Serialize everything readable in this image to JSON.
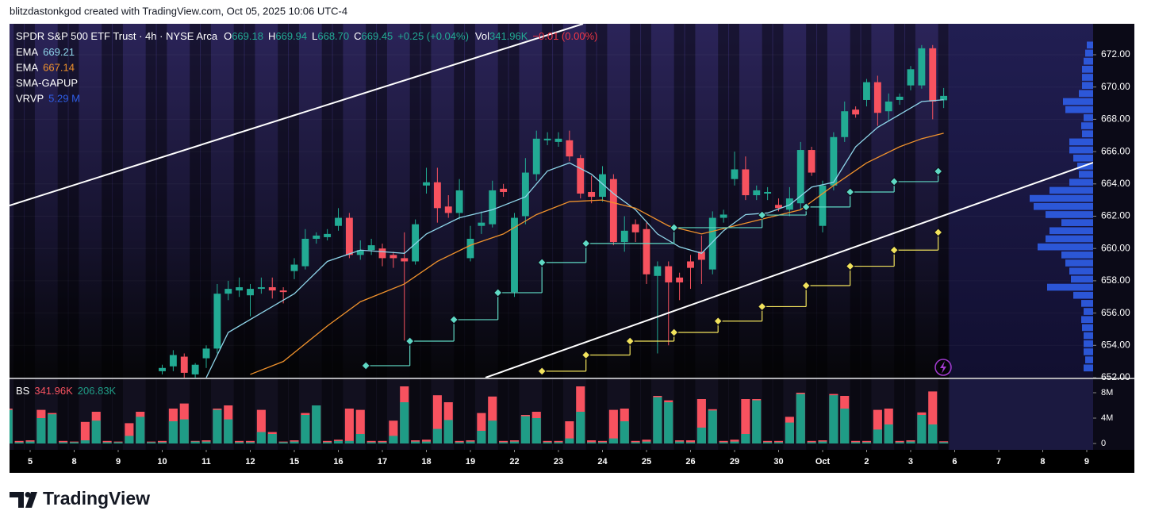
{
  "header": "blitzdastonkgod created with TradingView.com, Oct 05, 2025 10:06 UTC-4",
  "footer": "TradingView",
  "chart_data": {
    "type": "candlestick",
    "legend": {
      "symbol": "SPDR S&P 500 ETF Trust · 4h · NYSE Arca",
      "ohlc": [
        {
          "label": "O",
          "text": "669.18"
        },
        {
          "label": "H",
          "text": "669.94"
        },
        {
          "label": "L",
          "text": "668.70"
        },
        {
          "label": "C",
          "text": "669.45"
        }
      ],
      "change": "+0.25 (+0.04%)",
      "volume": {
        "label": "Vol",
        "text": "341.96K"
      },
      "volume_change": "−0.01 (0.00%)"
    },
    "up_color": "#22ab94",
    "down_color": "#f7525f",
    "xlim": [
      -1.874,
      96.577
    ],
    "xticks": [
      {
        "value": 0,
        "label": "5"
      },
      {
        "value": 4,
        "label": "8"
      },
      {
        "value": 8,
        "label": "9"
      },
      {
        "value": 12,
        "label": "10"
      },
      {
        "value": 16,
        "label": "11"
      },
      {
        "value": 20,
        "label": "12"
      },
      {
        "value": 24,
        "label": "15"
      },
      {
        "value": 28,
        "label": "16"
      },
      {
        "value": 32,
        "label": "17"
      },
      {
        "value": 36,
        "label": "18"
      },
      {
        "value": 40,
        "label": "19"
      },
      {
        "value": 44,
        "label": "22"
      },
      {
        "value": 48,
        "label": "23"
      },
      {
        "value": 52,
        "label": "24"
      },
      {
        "value": 56,
        "label": "25"
      },
      {
        "value": 60,
        "label": "26"
      },
      {
        "value": 64,
        "label": "29"
      },
      {
        "value": 68,
        "label": "30"
      },
      {
        "value": 72,
        "label": "Oct"
      },
      {
        "value": 76,
        "label": "2"
      },
      {
        "value": 80,
        "label": "3"
      },
      {
        "value": 84,
        "label": "6"
      },
      {
        "value": 88,
        "label": "7"
      },
      {
        "value": 92,
        "label": "8"
      },
      {
        "value": 96,
        "label": "9"
      }
    ],
    "ylim": [
      652,
      673.916
    ],
    "yticks": [
      {
        "value": 672,
        "label": "672.00"
      },
      {
        "value": 670,
        "label": "670.00"
      },
      {
        "value": 668,
        "label": "668.00"
      },
      {
        "value": 666,
        "label": "666.00"
      },
      {
        "value": 664,
        "label": "664.00"
      },
      {
        "value": 662,
        "label": "662.00"
      },
      {
        "value": 660,
        "label": "660.00"
      },
      {
        "value": 658,
        "label": "658.00"
      },
      {
        "value": 656,
        "label": "656.00"
      },
      {
        "value": 654,
        "label": "654.00"
      },
      {
        "value": 652,
        "label": "652.00"
      }
    ],
    "x": [
      12,
      13,
      14,
      15,
      16,
      17,
      18,
      19,
      20,
      21,
      22,
      23,
      24,
      25,
      26,
      27,
      28,
      29,
      30,
      31,
      32,
      33,
      34,
      35,
      36,
      37,
      38,
      39,
      40,
      41,
      42,
      43,
      44,
      45,
      46,
      47,
      48,
      49,
      50,
      51,
      52,
      53,
      54,
      55,
      56,
      57,
      58,
      59,
      60,
      61,
      62,
      63,
      64,
      65,
      66,
      67,
      68,
      69,
      70,
      71,
      72,
      73,
      74,
      75,
      76,
      77,
      78,
      79,
      80,
      81,
      82,
      83
    ],
    "open": [
      652.4,
      652.7,
      653.3,
      652.2,
      653.2,
      653.8,
      657.2,
      657.4,
      657.1,
      657.5,
      657.6,
      657.4,
      658.6,
      658.9,
      660.6,
      660.7,
      661.4,
      661.9,
      659.6,
      659.9,
      660.0,
      659.6,
      659.4,
      659.2,
      663.9,
      664.1,
      662.6,
      662.2,
      659.4,
      661.4,
      661.5,
      663.7,
      657.3,
      662.0,
      664.6,
      666.7,
      666.6,
      666.7,
      665.6,
      663.5,
      663.2,
      664.3,
      660.4,
      661.5,
      661.2,
      658.3,
      658.9,
      658.2,
      659.2,
      659.8,
      658.7,
      661.9,
      664.3,
      664.9,
      663.3,
      663.4,
      662.7,
      662.4,
      662.8,
      666.1,
      661.4,
      663.9,
      666.9,
      668.6,
      669.2,
      670.3,
      668.5,
      669.2,
      670.1,
      670.1,
      672.4,
      669.18
    ],
    "high": [
      652.8,
      653.7,
      653.5,
      652.9,
      654.0,
      657.8,
      658.0,
      658.2,
      657.8,
      658.2,
      658.2,
      657.6,
      659.4,
      661.2,
      661.0,
      661.2,
      662.5,
      662.2,
      660.5,
      660.6,
      660.3,
      659.8,
      661.0,
      661.8,
      665.0,
      665.0,
      663.3,
      664.3,
      661.4,
      662.3,
      664.2,
      664.0,
      662.2,
      665.6,
      667.3,
      667.2,
      667.2,
      667.3,
      665.8,
      664.5,
      665.1,
      664.6,
      662.0,
      661.8,
      661.6,
      659.2,
      659.2,
      658.5,
      659.6,
      660.8,
      662.3,
      662.4,
      666.0,
      665.7,
      663.9,
      663.8,
      663.1,
      663.8,
      666.6,
      666.3,
      664.2,
      667.2,
      669.1,
      668.8,
      670.5,
      670.7,
      669.6,
      669.6,
      671.3,
      672.6,
      672.6,
      669.94
    ],
    "low": [
      652.2,
      652.4,
      652.0,
      652.0,
      652.6,
      653.5,
      656.8,
      657.0,
      655.8,
      657.2,
      656.9,
      656.6,
      658.1,
      658.7,
      660.3,
      660.5,
      661.1,
      659.4,
      659.3,
      659.6,
      658.9,
      658.8,
      654.3,
      659.0,
      663.4,
      661.6,
      661.9,
      661.8,
      659.2,
      660.9,
      661.3,
      663.2,
      657.0,
      661.5,
      664.2,
      666.4,
      666.3,
      665.4,
      663.1,
      662.8,
      662.9,
      660.2,
      659.8,
      660.4,
      657.8,
      653.5,
      654.0,
      656.8,
      657.5,
      657.8,
      658.4,
      661.6,
      663.9,
      663.0,
      663.0,
      663.0,
      662.3,
      662.0,
      662.4,
      664.5,
      661.0,
      663.6,
      666.6,
      668.1,
      668.8,
      667.6,
      667.9,
      668.9,
      669.8,
      669.9,
      668.0,
      668.7
    ],
    "close": [
      652.6,
      653.4,
      652.3,
      652.8,
      653.8,
      657.2,
      657.5,
      657.6,
      657.5,
      657.6,
      657.4,
      657.3,
      659.0,
      660.6,
      660.8,
      660.9,
      661.9,
      659.6,
      659.9,
      660.2,
      659.4,
      659.4,
      659.2,
      661.5,
      664.1,
      662.5,
      662.2,
      663.6,
      660.6,
      661.6,
      663.6,
      663.5,
      661.9,
      664.7,
      666.8,
      666.8,
      666.8,
      665.7,
      663.4,
      663.2,
      664.6,
      660.4,
      661.1,
      661.0,
      658.4,
      658.9,
      657.9,
      657.9,
      658.8,
      659.3,
      661.9,
      662.1,
      664.9,
      663.3,
      663.6,
      663.5,
      662.5,
      663.1,
      666.1,
      664.7,
      663.9,
      666.9,
      668.5,
      668.3,
      670.3,
      668.4,
      669.1,
      669.4,
      671.1,
      672.4,
      669.1,
      669.45
    ],
    "lines": [
      {
        "name": "EMA",
        "value_label": "669.21",
        "color": "#8fd6ea",
        "x": [
          16,
          18,
          21,
          24,
          27,
          30,
          34,
          36,
          39,
          42,
          45,
          47,
          49,
          51,
          53,
          55,
          57,
          59,
          61,
          63,
          65,
          67,
          69,
          71,
          73,
          75,
          77,
          79,
          81,
          83
        ],
        "values": [
          652.0,
          654.8,
          656.0,
          657.2,
          659.2,
          659.9,
          659.7,
          660.9,
          661.9,
          662.4,
          663.2,
          664.8,
          665.3,
          664.6,
          663.4,
          662.4,
          660.9,
          660.1,
          659.7,
          661.1,
          662.1,
          662.2,
          662.7,
          663.8,
          664.1,
          666.3,
          667.5,
          668.3,
          669.1,
          669.21
        ]
      },
      {
        "name": "EMA",
        "value_label": "667.14",
        "color": "#f0922c",
        "x": [
          20,
          23,
          27,
          30,
          34,
          37,
          40,
          43,
          46,
          49,
          52,
          55,
          58,
          61,
          64,
          67,
          70,
          73,
          76,
          79,
          81,
          83
        ],
        "values": [
          652.2,
          653.0,
          655.2,
          656.7,
          657.8,
          659.2,
          660.2,
          660.9,
          662.1,
          662.9,
          663.0,
          662.5,
          661.4,
          660.9,
          661.4,
          661.9,
          662.4,
          663.9,
          665.3,
          666.3,
          666.8,
          667.14
        ]
      }
    ],
    "gapup": {
      "name": "SMA-GAPUP",
      "lines": [
        {
          "color": "#5fd9c4",
          "x": [
            30.5,
            34.5,
            38.5,
            42.5,
            46.5,
            50.5,
            58.5,
            66.5,
            70.5,
            74.5,
            78.5,
            82.5
          ],
          "values": [
            652.74,
            654.26,
            655.59,
            657.26,
            659.13,
            660.31,
            661.29,
            662.07,
            662.57,
            663.5,
            664.14,
            664.78
          ]
        },
        {
          "color": "#f2e35c",
          "x": [
            46.5,
            50.5,
            54.5,
            58.5,
            62.5,
            66.5,
            70.5,
            74.5,
            78.5,
            82.5
          ],
          "values": [
            652.4,
            653.4,
            654.26,
            654.8,
            655.5,
            656.4,
            657.7,
            658.9,
            659.9,
            661.0
          ]
        }
      ]
    },
    "vrvp": {
      "name": "VRVP",
      "value_label": "5.29 M",
      "color": "#2f5ee8",
      "levels": [
        672.6,
        672.1,
        671.6,
        671.1,
        670.6,
        670.1,
        669.6,
        669.1,
        668.6,
        668.1,
        667.6,
        667.1,
        666.6,
        666.1,
        665.6,
        665.1,
        664.6,
        664.1,
        663.6,
        663.1,
        662.6,
        662.1,
        661.6,
        661.1,
        660.6,
        660.1,
        659.6,
        659.1,
        658.6,
        658.1,
        657.6,
        657.1,
        656.6,
        656.1,
        655.6,
        655.1,
        654.6,
        654.1,
        653.6,
        653.1,
        652.6
      ],
      "values": [
        8,
        10,
        12,
        14,
        14,
        14,
        18,
        38,
        35,
        12,
        15,
        14,
        30,
        30,
        25,
        20,
        18,
        30,
        55,
        80,
        75,
        60,
        40,
        55,
        60,
        70,
        40,
        35,
        30,
        28,
        58,
        25,
        15,
        12,
        15,
        14,
        12,
        12,
        12,
        10,
        12
      ]
    },
    "volume": {
      "name": "BS",
      "ylim": [
        -1000000,
        10125000
      ],
      "yticks": [
        0,
        {
          "value": 4000000,
          "label": "4M"
        },
        {
          "value": 8000000,
          "label": "8M"
        }
      ],
      "x": [
        -2,
        -1,
        0,
        1,
        2,
        3,
        4,
        5,
        6,
        7,
        8,
        9,
        10,
        11,
        12,
        13,
        14,
        15,
        16,
        17,
        18,
        19,
        20,
        21,
        22,
        23,
        24,
        25,
        26,
        27,
        28,
        29,
        30,
        31,
        32,
        33,
        34,
        35,
        36,
        37,
        38,
        39,
        40,
        41,
        42,
        43,
        44,
        45,
        46,
        47,
        48,
        49,
        50,
        51,
        52,
        53,
        54,
        55,
        56,
        57,
        58,
        59,
        60,
        61,
        62,
        63,
        64,
        65,
        66,
        67,
        68,
        69,
        70,
        71,
        72,
        73,
        74,
        75,
        76,
        77,
        78,
        79,
        80,
        81,
        82,
        83
      ],
      "series": [
        {
          "color": "#f7525f",
          "value_label": "341.96K",
          "values": [
            5500000,
            400000,
            500000,
            5300000,
            4800000,
            400000,
            300000,
            3400000,
            5000000,
            400000,
            300000,
            3200000,
            5000000,
            300000,
            400000,
            5500000,
            6300000,
            400000,
            500000,
            5500000,
            6000000,
            400000,
            400000,
            5300000,
            1800000,
            300000,
            500000,
            4800000,
            6000000,
            400000,
            600000,
            5500000,
            5300000,
            400000,
            400000,
            3600000,
            9000000,
            500000,
            600000,
            7600000,
            6500000,
            400000,
            500000,
            4800000,
            7400000,
            400000,
            500000,
            4500000,
            5000000,
            400000,
            400000,
            3500000,
            9000000,
            500000,
            400000,
            5300000,
            5500000,
            400000,
            600000,
            7500000,
            6800000,
            500000,
            500000,
            7000000,
            5400000,
            400000,
            600000,
            7000000,
            7000000,
            400000,
            400000,
            4200000,
            8000000,
            400000,
            500000,
            7800000,
            7500000,
            400000,
            400000,
            5300000,
            5500000,
            400000,
            500000,
            4900000,
            8200000,
            341960
          ]
        },
        {
          "color": "#1f9c86",
          "value_label": "206.83K",
          "values": [
            5300000,
            200000,
            300000,
            4000000,
            4600000,
            200000,
            200000,
            500000,
            3600000,
            200000,
            200000,
            1200000,
            4200000,
            200000,
            200000,
            3500000,
            3800000,
            300000,
            300000,
            5300000,
            3800000,
            200000,
            200000,
            1800000,
            1500000,
            200000,
            300000,
            4500000,
            6000000,
            200000,
            400000,
            400000,
            1500000,
            200000,
            200000,
            1200000,
            6500000,
            300000,
            300000,
            2300000,
            3700000,
            200000,
            300000,
            2000000,
            3600000,
            200000,
            300000,
            4300000,
            4000000,
            200000,
            200000,
            800000,
            5000000,
            200000,
            200000,
            800000,
            3500000,
            200000,
            300000,
            7300000,
            6500000,
            300000,
            200000,
            2500000,
            5200000,
            200000,
            300000,
            1500000,
            6800000,
            200000,
            200000,
            3300000,
            7800000,
            200000,
            300000,
            7600000,
            5500000,
            200000,
            200000,
            2200000,
            3000000,
            200000,
            300000,
            4500000,
            3000000,
            206830
          ]
        }
      ]
    }
  }
}
